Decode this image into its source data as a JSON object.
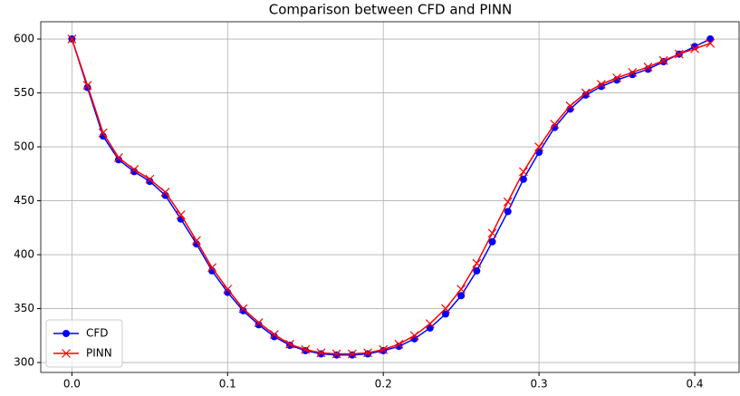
{
  "chart_data": {
    "type": "line",
    "title": "Comparison between CFD and PINN",
    "x": [
      0,
      0.01,
      0.02,
      0.03,
      0.04,
      0.05,
      0.06,
      0.07,
      0.08,
      0.09,
      0.1,
      0.11,
      0.12,
      0.13,
      0.14,
      0.15,
      0.16,
      0.17,
      0.18,
      0.19,
      0.2,
      0.21,
      0.22,
      0.23,
      0.24,
      0.25,
      0.26,
      0.27,
      0.28,
      0.29,
      0.3,
      0.31,
      0.32,
      0.33,
      0.34,
      0.35,
      0.36,
      0.37,
      0.38,
      0.39,
      0.4,
      0.41
    ],
    "series": [
      {
        "name": "CFD",
        "color": "#0000ff",
        "marker": "o",
        "values": [
          600,
          555,
          510,
          488,
          477,
          468,
          455,
          433,
          410,
          385,
          365,
          348,
          335,
          324,
          316,
          311,
          308,
          307,
          307,
          308,
          311,
          315,
          322,
          332,
          345,
          362,
          385,
          412,
          440,
          470,
          495,
          518,
          535,
          548,
          556,
          562,
          567,
          572,
          579,
          586,
          593,
          600
        ]
      },
      {
        "name": "PINN",
        "color": "#ff0000",
        "marker": "x",
        "values": [
          600,
          557,
          513,
          490,
          479,
          470,
          458,
          437,
          413,
          388,
          368,
          350,
          337,
          326,
          317,
          312,
          309,
          308,
          308,
          309,
          312,
          317,
          325,
          336,
          350,
          368,
          392,
          420,
          449,
          477,
          500,
          521,
          538,
          550,
          558,
          564,
          569,
          574,
          580,
          586,
          591,
          596
        ]
      }
    ],
    "xlim": [
      -0.02,
      0.4285
    ],
    "ylim": [
      290.8,
      616
    ],
    "xticks": [
      {
        "value": 0,
        "label": "0.0"
      },
      0.1,
      0.2,
      0.3,
      0.4
    ],
    "yticks": [
      300,
      350,
      400,
      450,
      500,
      550,
      600
    ],
    "grid": true,
    "legend": "lower left"
  }
}
